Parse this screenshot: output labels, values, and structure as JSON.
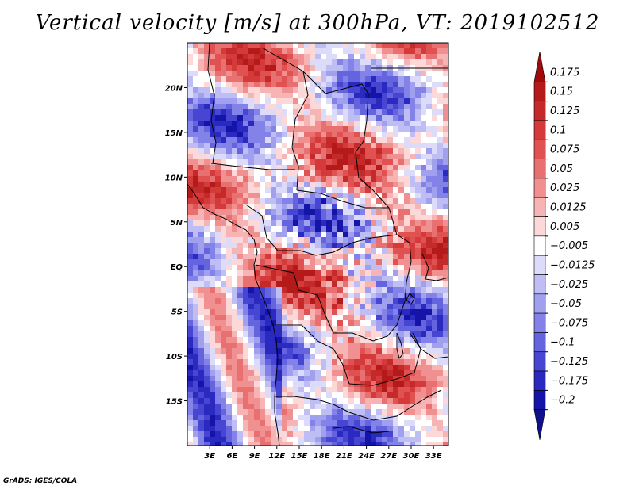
{
  "title": "Vertical velocity [m/s] at 300hPa, VT: 2019102512",
  "footer": "GrADS: IGES/COLA",
  "map": {
    "lon_range": [
      0,
      35
    ],
    "lat_range": [
      -20,
      25
    ],
    "lat_ticks": [
      {
        "value": 20,
        "label": "20N"
      },
      {
        "value": 15,
        "label": "15N"
      },
      {
        "value": 10,
        "label": "10N"
      },
      {
        "value": 5,
        "label": "5N"
      },
      {
        "value": 0,
        "label": "EQ"
      },
      {
        "value": -5,
        "label": "5S"
      },
      {
        "value": -10,
        "label": "10S"
      },
      {
        "value": -15,
        "label": "15S"
      }
    ],
    "lon_ticks": [
      {
        "value": 3,
        "label": "3E"
      },
      {
        "value": 6,
        "label": "6E"
      },
      {
        "value": 9,
        "label": "9E"
      },
      {
        "value": 12,
        "label": "12E"
      },
      {
        "value": 15,
        "label": "15E"
      },
      {
        "value": 18,
        "label": "18E"
      },
      {
        "value": 21,
        "label": "21E"
      },
      {
        "value": 24,
        "label": "24E"
      },
      {
        "value": 27,
        "label": "27E"
      },
      {
        "value": 30,
        "label": "30E"
      },
      {
        "value": 33,
        "label": "33E"
      }
    ],
    "field_description": "vertical velocity, red = positive (upward), blue = negative",
    "border_color": "#000000"
  },
  "colorbar": {
    "labels": [
      "0.175",
      "0.15",
      "0.125",
      "0.1",
      "0.075",
      "0.05",
      "0.025",
      "0.0125",
      "0.005",
      "−0.005",
      "−0.0125",
      "−0.025",
      "−0.05",
      "−0.075",
      "−0.1",
      "−0.125",
      "−0.175",
      "−0.2"
    ],
    "colors": [
      "#a00a0a",
      "#b51a1a",
      "#c42a2a",
      "#d43a3a",
      "#e05252",
      "#e87070",
      "#f09090",
      "#f7b4b4",
      "#fcd8d8",
      "#ffffff",
      "#dcdcfa",
      "#bebef5",
      "#a0a0ef",
      "#8282e8",
      "#6464df",
      "#4646d2",
      "#2a2ac0",
      "#1414a8",
      "#10108a"
    ]
  }
}
